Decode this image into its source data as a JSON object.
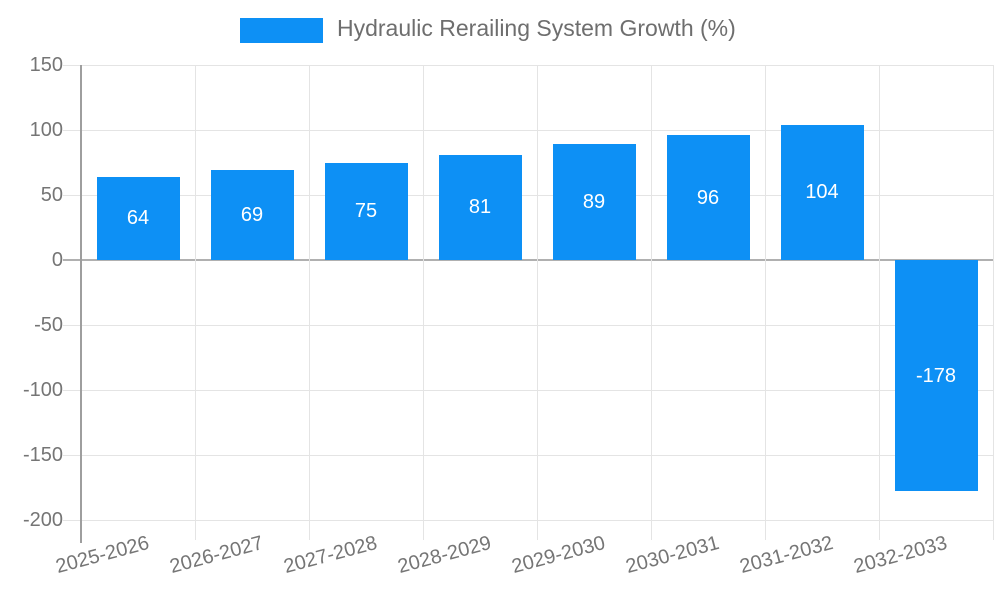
{
  "chart_data": {
    "type": "bar",
    "title": "Hydraulic Rerailing System Growth (%)",
    "legend": {
      "position": "top",
      "series_label": "Hydraulic Rerailing System Growth (%)"
    },
    "categories": [
      "2025-2026",
      "2026-2027",
      "2027-2028",
      "2028-2029",
      "2029-2030",
      "2030-2031",
      "2031-2032",
      "2032-2033"
    ],
    "values": [
      64,
      69,
      75,
      81,
      89,
      96,
      104,
      -178
    ],
    "xlabel": "",
    "ylabel": "",
    "ylim": [
      -200,
      150
    ],
    "yticks": [
      150,
      100,
      50,
      0,
      -50,
      -100,
      -150,
      -200
    ],
    "grid": true,
    "colors": {
      "bar": "#0d90f5",
      "data_label": "#ffffff",
      "tick_label": "#757575",
      "legend_text": "#6e6e6e",
      "gridline": "#e4e4e4",
      "zero_line": "#b0b0b0",
      "axis_line": "#9e9e9e",
      "background": "#ffffff"
    }
  }
}
